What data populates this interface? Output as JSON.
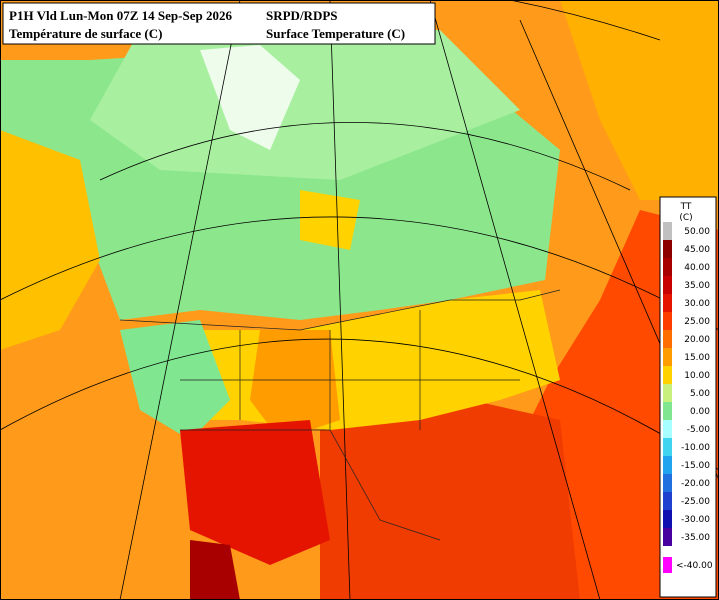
{
  "header": {
    "left": [
      "P1H Vld Lun-Mon 07Z 14 Sep-Sep 2026",
      "Température de surface (C)"
    ],
    "right": [
      "SRPD/RDPS",
      "Surface Temperature (C)"
    ]
  },
  "legend": {
    "title": "TT",
    "unit": "(C)",
    "items": [
      {
        "label": "50.00",
        "color": "#c0c0c0"
      },
      {
        "label": "45.00",
        "color": "#8c0000"
      },
      {
        "label": "40.00",
        "color": "#a80000"
      },
      {
        "label": "35.00",
        "color": "#c80000"
      },
      {
        "label": "30.00",
        "color": "#e41400"
      },
      {
        "label": "25.00",
        "color": "#ff3c00"
      },
      {
        "label": "20.00",
        "color": "#ff6e00"
      },
      {
        "label": "15.00",
        "color": "#ff9c00"
      },
      {
        "label": "10.00",
        "color": "#ffd200"
      },
      {
        "label": "5.00",
        "color": "#c8f07c"
      },
      {
        "label": "0.00",
        "color": "#80e690"
      },
      {
        "label": "-5.00",
        "color": "#a8ffff"
      },
      {
        "label": "-10.00",
        "color": "#40d4f0"
      },
      {
        "label": "-15.00",
        "color": "#20a4f0"
      },
      {
        "label": "-20.00",
        "color": "#2070e0"
      },
      {
        "label": "-25.00",
        "color": "#2040d0"
      },
      {
        "label": "-30.00",
        "color": "#1010b0"
      },
      {
        "label": "-35.00",
        "color": "#4800a0"
      },
      {
        "label": "<-40.00",
        "color": "#ff00ff"
      }
    ]
  }
}
